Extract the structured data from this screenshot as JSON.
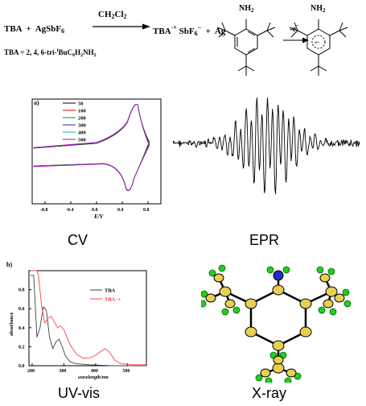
{
  "reaction": {
    "reactant1": "TBA",
    "plus1": "+",
    "reactant2": "AgSbF",
    "reactant2_sub": "6",
    "solvent": "CH",
    "solvent_sub1": "2",
    "solvent_mid": "Cl",
    "solvent_sub2": "2",
    "product": "TBA",
    "product_sup": "·+",
    "product_salt": "SbF",
    "product_salt_sub": "6",
    "product_salt_sup": "−",
    "plus2": "+",
    "product2": "Ag",
    "definition_prefix": "TBA = 2, 4, 6-tri-",
    "definition_sup": "t",
    "definition_mid": "BuC",
    "definition_sub1": "6",
    "definition_h": "H",
    "definition_sub2": "2",
    "definition_end": "NH",
    "definition_sub3": "2"
  },
  "structures": {
    "nh2_left": "NH",
    "nh2_left_sub": "2",
    "nh2_right": "NH",
    "nh2_right_sub": "2",
    "oxidation_label": "-e",
    "oxidation_sup": "−",
    "radical_symbol": "+·"
  },
  "panels": {
    "cv_caption": "CV",
    "epr_caption": "EPR",
    "uv_caption": "UV-vis",
    "xray_caption": "X-ray"
  },
  "chart_data": [
    {
      "type": "line",
      "panel_label": "a)",
      "xlabel": "E/V",
      "x_ticks": [
        "-0.8",
        "-0.4",
        "0.0",
        "0.4",
        "0.8"
      ],
      "legend": [
        "50",
        "100",
        "200",
        "300",
        "400",
        "500"
      ],
      "legend_colors": [
        "#000000",
        "#e00000",
        "#00a000",
        "#2020e0",
        "#00b0b0",
        "#c000c0"
      ],
      "xlim": [
        -1.0,
        1.0
      ]
    },
    {
      "type": "line",
      "panel_label": "b)",
      "ylabel": "absorbance",
      "xlabel": "wavelength/nm",
      "x_ticks": [
        "200",
        "300",
        "400",
        "500"
      ],
      "y_ticks": [
        "0.0",
        "0.2",
        "0.4",
        "0.6",
        "0.8"
      ],
      "xlim": [
        190,
        560
      ],
      "ylim": [
        0,
        1.0
      ],
      "series": [
        {
          "name": "TBA",
          "color": "#404040",
          "x": [
            195,
            205,
            215,
            225,
            235,
            245,
            255,
            265,
            275,
            285,
            295,
            305,
            320,
            340,
            380,
            450,
            560
          ],
          "y": [
            0.95,
            0.95,
            0.3,
            0.4,
            0.62,
            0.58,
            0.3,
            0.18,
            0.25,
            0.28,
            0.2,
            0.1,
            0.04,
            0.02,
            0.01,
            0.0,
            0.0
          ]
        },
        {
          "name": "TBA",
          "sup": "·+",
          "color": "#ff4040",
          "x": [
            195,
            205,
            215,
            220,
            230,
            240,
            250,
            260,
            270,
            280,
            290,
            300,
            320,
            340,
            360,
            380,
            400,
            420,
            430,
            445,
            460,
            480,
            520,
            560
          ],
          "y": [
            1.0,
            1.0,
            1.0,
            0.95,
            0.62,
            0.45,
            0.5,
            0.52,
            0.46,
            0.4,
            0.42,
            0.38,
            0.22,
            0.12,
            0.08,
            0.08,
            0.11,
            0.16,
            0.18,
            0.14,
            0.06,
            0.02,
            0.01,
            0.01
          ]
        }
      ]
    },
    {
      "type": "line",
      "title": "",
      "description_series": "epr_spectrum"
    }
  ]
}
